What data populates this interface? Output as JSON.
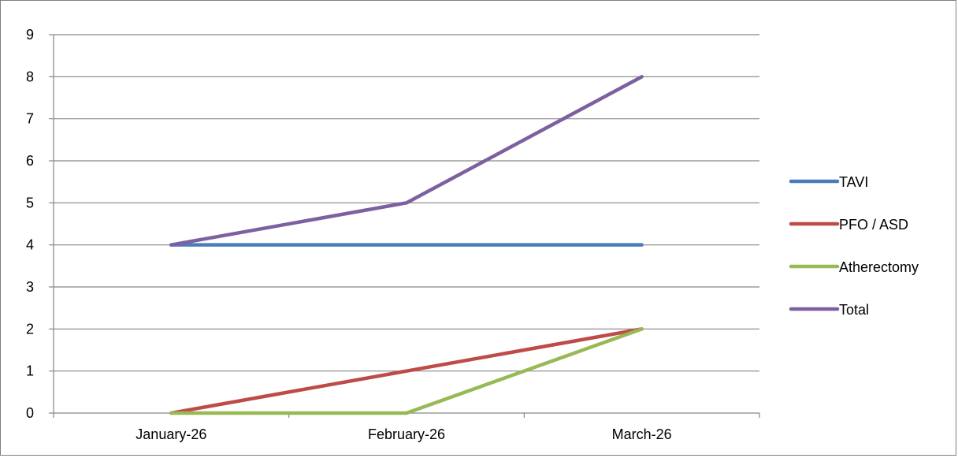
{
  "chart_data": {
    "type": "line",
    "categories": [
      "January-26",
      "February-26",
      "March-26"
    ],
    "series": [
      {
        "name": "TAVI",
        "values": [
          4,
          4,
          4
        ],
        "color": "#4a7ebb"
      },
      {
        "name": "PFO / ASD",
        "values": [
          0,
          1,
          2
        ],
        "color": "#be4b48"
      },
      {
        "name": "Atherectomy",
        "values": [
          0,
          0,
          2
        ],
        "color": "#98b954"
      },
      {
        "name": "Total",
        "values": [
          4,
          5,
          8
        ],
        "color": "#7d60a0"
      }
    ],
    "ylim": [
      0,
      9
    ],
    "yticks": [
      0,
      1,
      2,
      3,
      4,
      5,
      6,
      7,
      8,
      9
    ],
    "grid": true,
    "legend": "right",
    "title": "",
    "xlabel": "",
    "ylabel": ""
  }
}
